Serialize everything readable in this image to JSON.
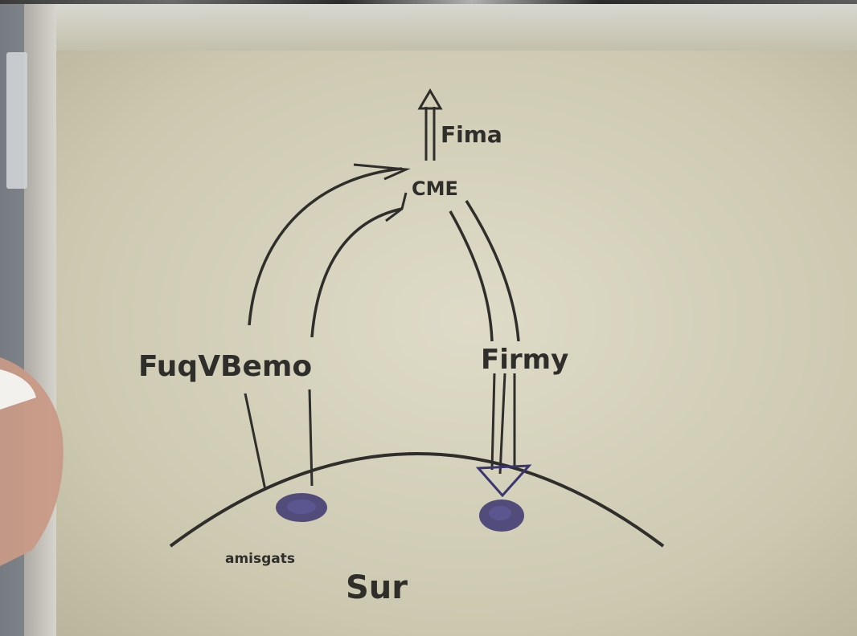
{
  "whiteboard": {
    "top_label": "Fima",
    "center_label": "CME",
    "left_label": "FuqVBemo",
    "right_label": "Firmy",
    "bottom_small_label": "amisgats",
    "bottom_label": "Sur"
  },
  "colors": {
    "wall": "#c9c6b0",
    "marker": "#2f2e2b",
    "marker_blue": "#3b3570",
    "frame": "#e3e1d6"
  }
}
